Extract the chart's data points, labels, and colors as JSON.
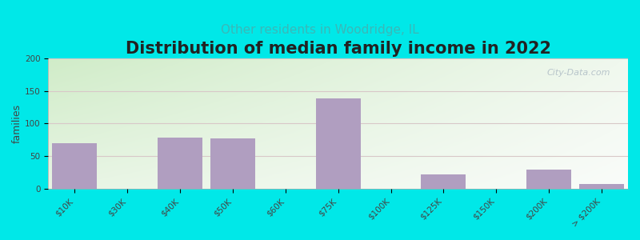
{
  "title": "Distribution of median family income in 2022",
  "subtitle": "Other residents in Woodridge, IL",
  "ylabel": "families",
  "categories": [
    "$10K",
    "$30K",
    "$40K",
    "$50K",
    "$60K",
    "$75K",
    "$100K",
    "$125K",
    "$150K",
    "$200K",
    "> $200K"
  ],
  "values": [
    70,
    0,
    78,
    77,
    0,
    139,
    0,
    22,
    0,
    30,
    8
  ],
  "bar_color": "#b09ec0",
  "bar_width": 0.85,
  "ylim": [
    0,
    200
  ],
  "yticks": [
    0,
    50,
    100,
    150,
    200
  ],
  "background_outer": "#00e8e8",
  "bg_top_color": "#eaf3e2",
  "bg_bottom_color": "#f8fbf8",
  "title_fontsize": 15,
  "subtitle_fontsize": 11,
  "subtitle_color": "#3ab8b8",
  "ylabel_fontsize": 9,
  "tick_fontsize": 7.5,
  "grid_color": "#d8c8c8",
  "watermark": "City-Data.com"
}
